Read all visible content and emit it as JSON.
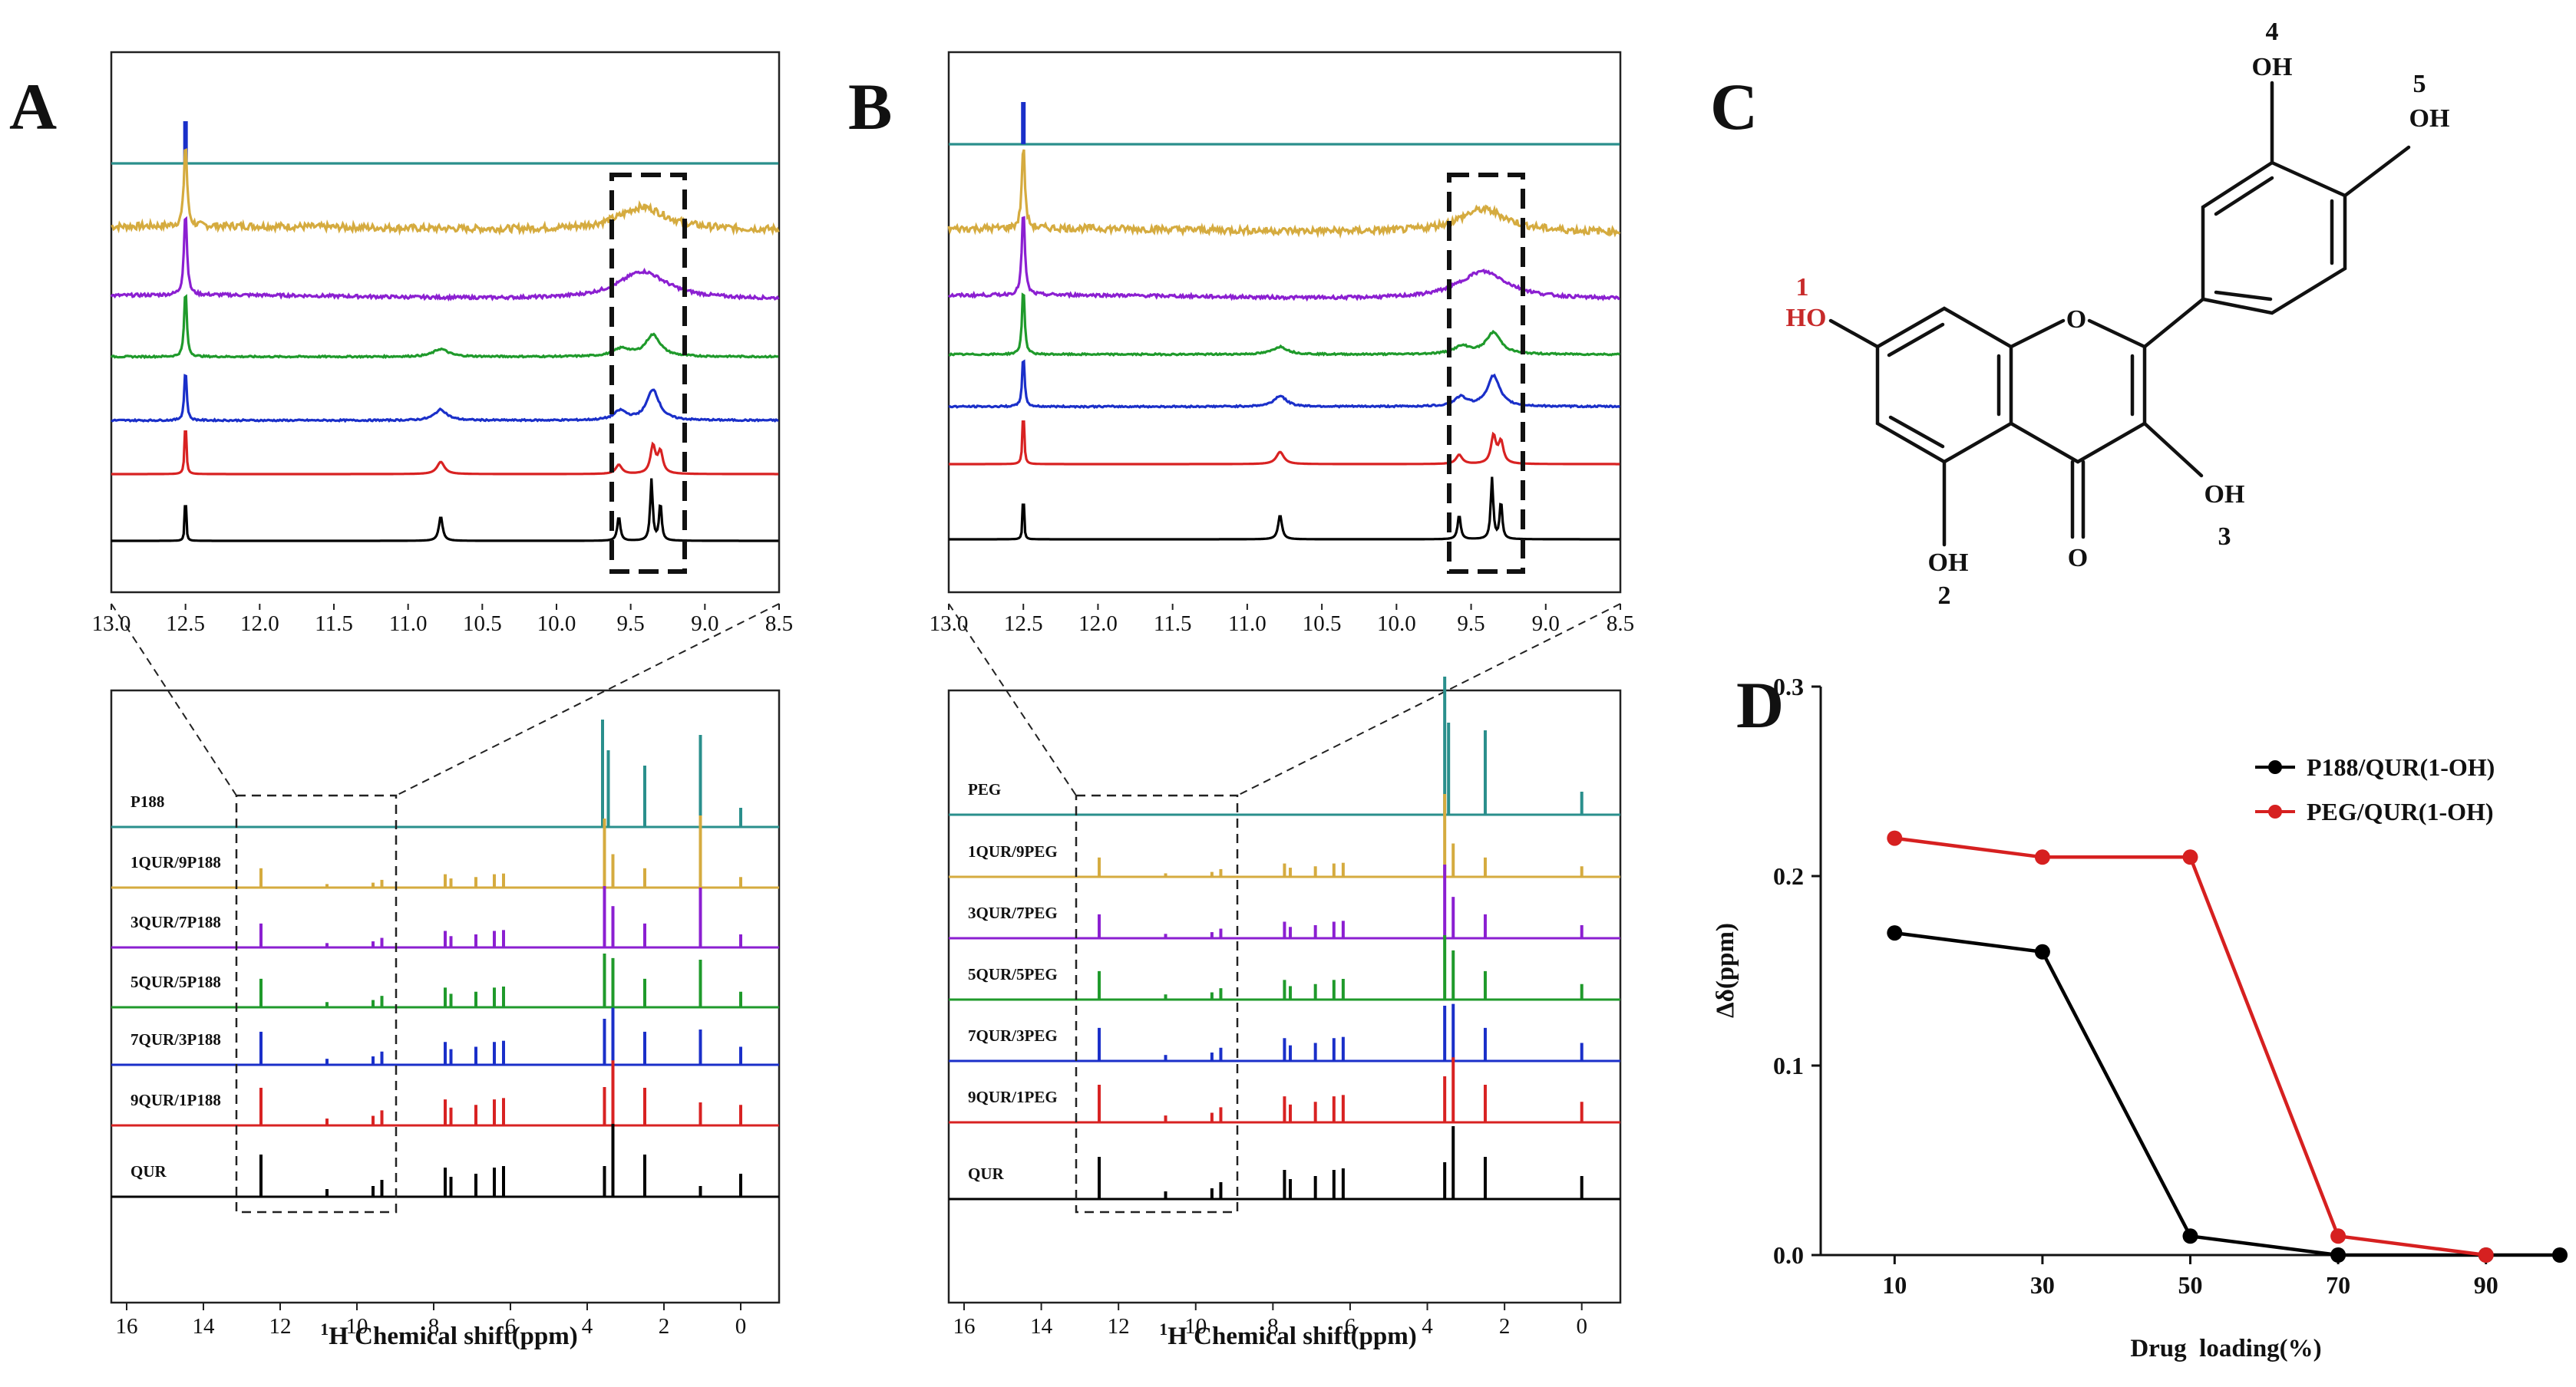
{
  "panels": {
    "A": "A",
    "B": "B",
    "C": "C",
    "D": "D"
  },
  "colors": {
    "P188": "#2a8f8c",
    "PEG": "#2a8f8c",
    "r1": "#d5ab3f",
    "r3": "#8b1fd1",
    "r5": "#1f9a2b",
    "r7": "#1a2fc9",
    "r9": "#d82222",
    "QUR": "#000000",
    "series_black": "#000000",
    "series_red": "#d62020",
    "highlight": "#c72a2a"
  },
  "nmr_A": {
    "labels": [
      "P188",
      "1QUR/9P188",
      "3QUR/7P188",
      "5QUR/5P188",
      "7QUR/3P188",
      "9QUR/1P188",
      "QUR"
    ],
    "zoom_ticks": [
      "13.0",
      "12.5",
      "12.0",
      "11.5",
      "11.0",
      "10.5",
      "10.0",
      "9.5",
      "9.0",
      "8.5"
    ],
    "full_ticks": [
      "16",
      "14",
      "12",
      "10",
      "8",
      "6",
      "4",
      "2",
      "0"
    ],
    "xlabel_sup": "1",
    "xlabel": "H Chemical shift(ppm)"
  },
  "nmr_B": {
    "labels": [
      "PEG",
      "1QUR/9PEG",
      "3QUR/7PEG",
      "5QUR/5PEG",
      "7QUR/3PEG",
      "9QUR/1PEG",
      "QUR"
    ],
    "zoom_ticks": [
      "13.0",
      "12.5",
      "12.0",
      "11.5",
      "11.0",
      "10.5",
      "10.0",
      "9.5",
      "9.0",
      "8.5"
    ],
    "full_ticks": [
      "16",
      "14",
      "12",
      "10",
      "8",
      "6",
      "4",
      "2",
      "0"
    ],
    "xlabel_sup": "1",
    "xlabel": "H Chemical shift(ppm)"
  },
  "molecule": {
    "oh1_num": "1",
    "oh1": "HO",
    "oh2_num": "2",
    "oh2": "OH",
    "oh3_num": "3",
    "oh3": "OH",
    "oh4_num": "4",
    "oh4": "OH",
    "oh5_num": "5",
    "oh5": "OH",
    "ring_o": "O",
    "carbonyl_o": "O"
  },
  "chart_data": {
    "type": "line",
    "title": "",
    "xlabel": "Drug  loading(%)",
    "ylabel": "Δδ(ppm)",
    "x": [
      10,
      30,
      50,
      70,
      90
    ],
    "x_ticks": [
      "10",
      "30",
      "50",
      "70",
      "90"
    ],
    "y_ticks": [
      "0.0",
      "0.1",
      "0.2",
      "0.3"
    ],
    "xlim": [
      0,
      100
    ],
    "ylim": [
      0,
      0.3
    ],
    "legend_position": "top-right",
    "series": [
      {
        "name": "P188/QUR(1-OH)",
        "color": "#000000",
        "x": [
          10,
          30,
          50,
          70,
          90,
          100
        ],
        "values": [
          0.17,
          0.16,
          0.01,
          0.0,
          0.0,
          0.0
        ]
      },
      {
        "name": "PEG/QUR(1-OH)",
        "color": "#d62020",
        "x": [
          10,
          30,
          50,
          70,
          90
        ],
        "values": [
          0.22,
          0.21,
          0.21,
          0.01,
          0.0
        ]
      }
    ]
  }
}
